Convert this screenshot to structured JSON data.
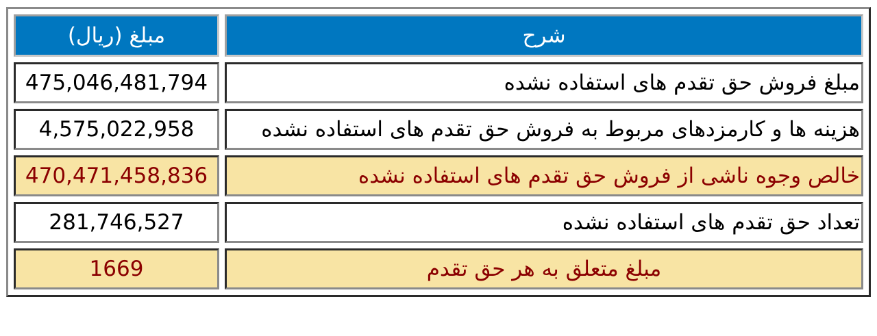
{
  "table": {
    "headers": {
      "amount": "مبلغ (ریال)",
      "description": "شرح"
    },
    "rows": [
      {
        "description": "مبلغ فروش حق تقدم های استفاده نشده",
        "amount": "475,046,481,794",
        "highlight": false
      },
      {
        "description": "هزینه ها و کارمزدهای مربوط به فروش حق تقدم های استفاده نشده",
        "amount": "4,575,022,958",
        "highlight": false
      },
      {
        "description": "خالص وجوه ناشی از فروش حق تقدم های استفاده نشده",
        "amount": "470,471,458,836",
        "highlight": true
      },
      {
        "description": "تعداد حق تقدم های استفاده نشده",
        "amount": "281,746,527",
        "highlight": false
      },
      {
        "description": "مبلغ متعلق به هر حق تقدم",
        "amount": "1669",
        "highlight": true
      }
    ]
  },
  "colors": {
    "header_bg": "#0077c0",
    "header_text": "#ffffff",
    "highlight_bg": "#f8e4a4",
    "highlight_text": "#8b0000"
  }
}
